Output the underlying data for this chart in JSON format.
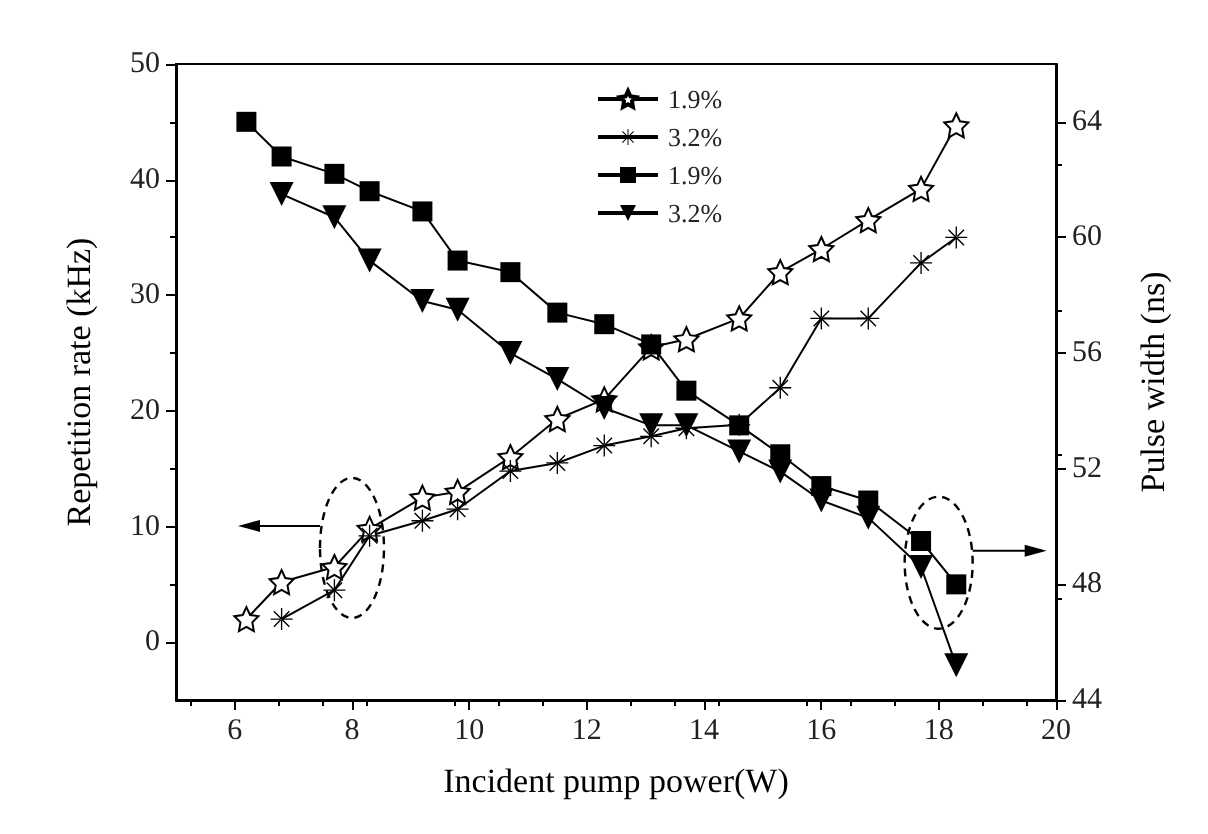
{
  "chart_data": {
    "type": "line",
    "xlabel": "Incident pump power(W)",
    "ylabel": "Repetition rate (kHz)",
    "y2label": "Pulse width (ns)",
    "xlim": [
      5,
      20
    ],
    "xticks": [
      6,
      8,
      10,
      12,
      14,
      16,
      18,
      20
    ],
    "ylim": [
      -5,
      50
    ],
    "yticks": [
      0,
      10,
      20,
      30,
      40,
      50
    ],
    "y2lim": [
      44,
      66
    ],
    "y2ticks": [
      44,
      48,
      52,
      56,
      60,
      64
    ],
    "grid": false,
    "legend": "top",
    "line_style": "solid",
    "series": [
      {
        "name": "1.9%",
        "color": "#000000",
        "marker": "star",
        "x": [
          6.2,
          6.8,
          7.7,
          8.3,
          9.2,
          9.8,
          10.7,
          11.5,
          12.3,
          13.1,
          13.7,
          14.6,
          15.3,
          16,
          16.8,
          17.7,
          18.3
        ],
        "values": [
          2,
          5.2,
          6.5,
          9.8,
          12.5,
          13,
          16,
          19.3,
          21,
          25.5,
          26.2,
          28,
          32,
          34,
          36.5,
          39.2,
          44.7
        ]
      },
      {
        "name": "3.2%",
        "color": "#000000",
        "marker": "cross",
        "x": [
          6.8,
          7.7,
          8.3,
          9.2,
          9.8,
          10.7,
          11.5,
          12.3,
          13.1,
          13.7,
          14.6,
          15.3,
          16,
          16.8,
          17.7,
          18.3
        ],
        "values": [
          2,
          4.5,
          9.2,
          10.5,
          11.5,
          14.8,
          15.5,
          17,
          17.8,
          18.5,
          18.8,
          22,
          28,
          28,
          32.8,
          35
        ]
      },
      {
        "name": "1.9%",
        "color": "#000000",
        "marker": "square",
        "axis": "y2",
        "x": [
          6.2,
          6.8,
          7.7,
          8.3,
          9.2,
          9.8,
          10.7,
          11.5,
          12.3,
          13.1,
          13.7,
          14.6,
          15.3,
          16,
          16.8,
          17.7,
          18.3
        ],
        "values": [
          64,
          62.8,
          62.2,
          61.6,
          60.9,
          59.2,
          58.8,
          57.4,
          57,
          56.3,
          54.7,
          53.5,
          52.5,
          51.4,
          50.9,
          49.5,
          48
        ]
      },
      {
        "name": "3.2%",
        "color": "#000000",
        "marker": "triangle",
        "axis": "y2",
        "x": [
          6.8,
          7.7,
          8.3,
          9.2,
          9.8,
          10.7,
          11.5,
          12.3,
          13.1,
          13.7,
          14.6,
          15.3,
          16,
          16.8,
          17.7,
          18.3
        ],
        "values": [
          61.5,
          60.7,
          59.2,
          57.8,
          57.5,
          56,
          55.1,
          54.1,
          53.5,
          53.5,
          52.6,
          51.9,
          50.9,
          50.3,
          48.6,
          45.2
        ]
      }
    ]
  }
}
